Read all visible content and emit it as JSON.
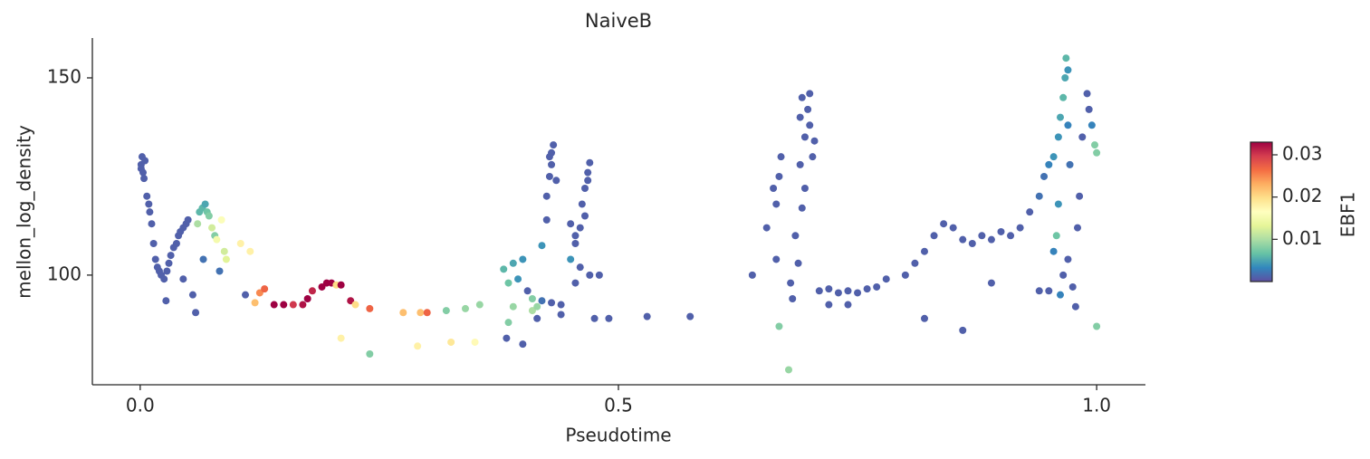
{
  "chart_data": {
    "type": "scatter",
    "title": "NaiveB",
    "x_label": "Pseudotime",
    "y_label": "mellon_log_density",
    "xlim": [
      -0.05,
      1.051
    ],
    "ylim": [
      72.2,
      160.1
    ],
    "xticks": [
      {
        "value": 0,
        "label": "0.0"
      },
      {
        "value": 0.5,
        "label": "0.5"
      },
      {
        "value": 1,
        "label": "1.0"
      }
    ],
    "yticks": [
      100,
      150
    ],
    "colormap": [
      "#5e4fa2",
      "#3288bd",
      "#66c2a5",
      "#abdda4",
      "#e6f598",
      "#ffffbf",
      "#fee08b",
      "#fdae61",
      "#f46d43",
      "#d53e4f",
      "#9e0142"
    ],
    "colorbar": {
      "label": "EBF1",
      "clim": [
        0,
        0.033
      ],
      "ticks": [
        0.01,
        0.02,
        0.03
      ]
    },
    "x": [
      0.002,
      0.001,
      0.003,
      0.004,
      0.001,
      0.005,
      0.007,
      0.009,
      0.01,
      0.012,
      0.014,
      0.016,
      0.018,
      0.02,
      0.022,
      0.025,
      0.028,
      0.03,
      0.032,
      0.035,
      0.038,
      0.04,
      0.042,
      0.045,
      0.048,
      0.05,
      0.027,
      0.055,
      0.058,
      0.045,
      0.062,
      0.065,
      0.068,
      0.07,
      0.072,
      0.06,
      0.075,
      0.078,
      0.08,
      0.085,
      0.088,
      0.09,
      0.105,
      0.115,
      0.083,
      0.066,
      0.11,
      0.12,
      0.125,
      0.13,
      0.14,
      0.15,
      0.16,
      0.17,
      0.175,
      0.18,
      0.19,
      0.195,
      0.2,
      0.205,
      0.21,
      0.22,
      0.225,
      0.24,
      0.21,
      0.24,
      0.275,
      0.29,
      0.293,
      0.3,
      0.32,
      0.34,
      0.325,
      0.35,
      0.355,
      0.38,
      0.385,
      0.39,
      0.395,
      0.4,
      0.405,
      0.39,
      0.385,
      0.41,
      0.415,
      0.42,
      0.43,
      0.44,
      0.44,
      0.383,
      0.4,
      0.41,
      0.415,
      0.42,
      0.425,
      0.425,
      0.428,
      0.43,
      0.43,
      0.432,
      0.428,
      0.435,
      0.45,
      0.455,
      0.46,
      0.462,
      0.465,
      0.468,
      0.47,
      0.468,
      0.465,
      0.455,
      0.47,
      0.46,
      0.48,
      0.475,
      0.49,
      0.53,
      0.575,
      0.455,
      0.45,
      0.64,
      0.655,
      0.662,
      0.665,
      0.668,
      0.67,
      0.665,
      0.668,
      0.678,
      0.68,
      0.682,
      0.685,
      0.688,
      0.69,
      0.692,
      0.695,
      0.698,
      0.7,
      0.7,
      0.703,
      0.69,
      0.705,
      0.695,
      0.692,
      0.71,
      0.72,
      0.73,
      0.74,
      0.75,
      0.76,
      0.77,
      0.78,
      0.72,
      0.74,
      0.8,
      0.81,
      0.82,
      0.83,
      0.84,
      0.85,
      0.86,
      0.87,
      0.88,
      0.89,
      0.9,
      0.91,
      0.92,
      0.93,
      0.82,
      0.86,
      0.89,
      0.94,
      0.95,
      0.94,
      0.945,
      0.95,
      0.955,
      0.96,
      0.962,
      0.965,
      0.967,
      0.968,
      0.97,
      0.96,
      0.958,
      0.955,
      0.965,
      0.962,
      0.97,
      0.975,
      0.98,
      0.982,
      0.985,
      0.99,
      0.992,
      0.995,
      0.998,
      1.0,
      1.0,
      0.978,
      0.972,
      0.97
    ],
    "y": [
      130,
      128,
      126,
      124.5,
      127,
      129,
      120,
      118,
      116,
      113,
      108,
      104,
      102,
      101,
      100,
      99,
      101,
      103,
      105,
      107,
      108,
      110,
      111,
      112,
      113,
      114,
      93.5,
      95,
      90.5,
      99,
      116,
      117,
      118,
      116,
      115,
      113,
      112,
      110,
      109,
      114,
      106,
      104,
      108,
      106,
      101,
      104,
      95,
      93,
      95.5,
      96.5,
      92.5,
      92.5,
      92.5,
      92.5,
      94,
      96,
      97,
      98,
      98,
      97.5,
      97.5,
      93.5,
      92.5,
      91.5,
      84,
      80,
      90.5,
      82,
      90.5,
      90.5,
      91,
      91.5,
      83,
      83,
      92.5,
      101.5,
      98,
      103,
      99,
      104,
      96,
      92,
      88,
      91,
      92,
      93.5,
      93,
      92.5,
      90,
      84,
      82.5,
      94,
      89,
      107.5,
      114,
      120,
      125,
      128,
      131,
      133,
      130,
      124,
      104,
      108,
      112,
      118,
      122,
      126,
      128.5,
      124,
      115,
      98,
      100,
      102,
      100,
      89,
      89,
      89.5,
      89.5,
      110,
      113,
      100,
      112,
      122,
      118,
      125,
      130,
      104,
      87,
      76,
      98,
      94,
      110,
      103,
      140,
      145,
      135,
      142,
      146,
      138,
      130,
      128,
      134,
      122,
      117,
      96,
      96.5,
      95.5,
      96,
      95.5,
      96.5,
      97,
      99,
      92.5,
      92.5,
      100,
      103,
      106,
      110,
      113,
      112,
      109,
      108,
      110,
      109,
      111,
      110,
      112,
      116,
      89,
      86,
      98,
      96,
      96,
      120,
      125,
      128,
      130,
      135,
      140,
      145,
      150,
      155,
      152,
      118,
      110,
      106,
      100,
      95,
      104,
      97,
      112,
      120,
      135,
      146,
      142,
      138,
      133,
      131,
      87,
      92,
      128,
      138
    ],
    "color_values": [
      0.001,
      0.001,
      0.001,
      0.001,
      0.001,
      0.001,
      0.001,
      0.001,
      0.001,
      0.001,
      0.001,
      0.001,
      0.001,
      0.001,
      0.001,
      0.001,
      0.001,
      0.001,
      0.001,
      0.001,
      0.001,
      0.001,
      0.001,
      0.001,
      0.001,
      0.001,
      0.001,
      0.001,
      0.001,
      0.001,
      0.006,
      0.006,
      0.005,
      0.007,
      0.008,
      0.01,
      0.012,
      0.008,
      0.015,
      0.016,
      0.012,
      0.013,
      0.018,
      0.018,
      0.002,
      0.002,
      0.001,
      0.022,
      0.025,
      0.027,
      0.033,
      0.033,
      0.03,
      0.032,
      0.033,
      0.031,
      0.033,
      0.033,
      0.033,
      0.02,
      0.033,
      0.032,
      0.02,
      0.027,
      0.018,
      0.008,
      0.022,
      0.018,
      0.022,
      0.027,
      0.008,
      0.009,
      0.019,
      0.017,
      0.009,
      0.006,
      0.007,
      0.005,
      0.004,
      0.004,
      0.001,
      0.009,
      0.008,
      0.01,
      0.009,
      0.002,
      0.001,
      0.001,
      0.001,
      0.001,
      0.001,
      0.008,
      0.001,
      0.004,
      0.001,
      0.001,
      0.001,
      0.001,
      0.001,
      0.001,
      0.001,
      0.001,
      0.004,
      0.001,
      0.001,
      0.001,
      0.001,
      0.001,
      0.001,
      0.001,
      0.001,
      0.001,
      0.001,
      0.001,
      0.001,
      0.001,
      0.001,
      0.001,
      0.001,
      0.001,
      0.001,
      0.001,
      0.001,
      0.001,
      0.001,
      0.001,
      0.001,
      0.001,
      0.008,
      0.009,
      0.001,
      0.001,
      0.001,
      0.001,
      0.001,
      0.001,
      0.001,
      0.001,
      0.001,
      0.001,
      0.001,
      0.001,
      0.001,
      0.001,
      0.001,
      0.001,
      0.001,
      0.001,
      0.001,
      0.001,
      0.001,
      0.001,
      0.001,
      0.001,
      0.001,
      0.001,
      0.001,
      0.001,
      0.001,
      0.001,
      0.001,
      0.001,
      0.001,
      0.001,
      0.001,
      0.001,
      0.001,
      0.001,
      0.001,
      0.001,
      0.001,
      0.001,
      0.001,
      0.001,
      0.002,
      0.002,
      0.003,
      0.004,
      0.004,
      0.005,
      0.006,
      0.005,
      0.006,
      0.004,
      0.004,
      0.007,
      0.003,
      0.001,
      0.003,
      0.001,
      0.001,
      0.001,
      0.001,
      0.001,
      0.001,
      0.001,
      0.003,
      0.008,
      0.008,
      0.008,
      0.001,
      0.002,
      0.003
    ]
  }
}
